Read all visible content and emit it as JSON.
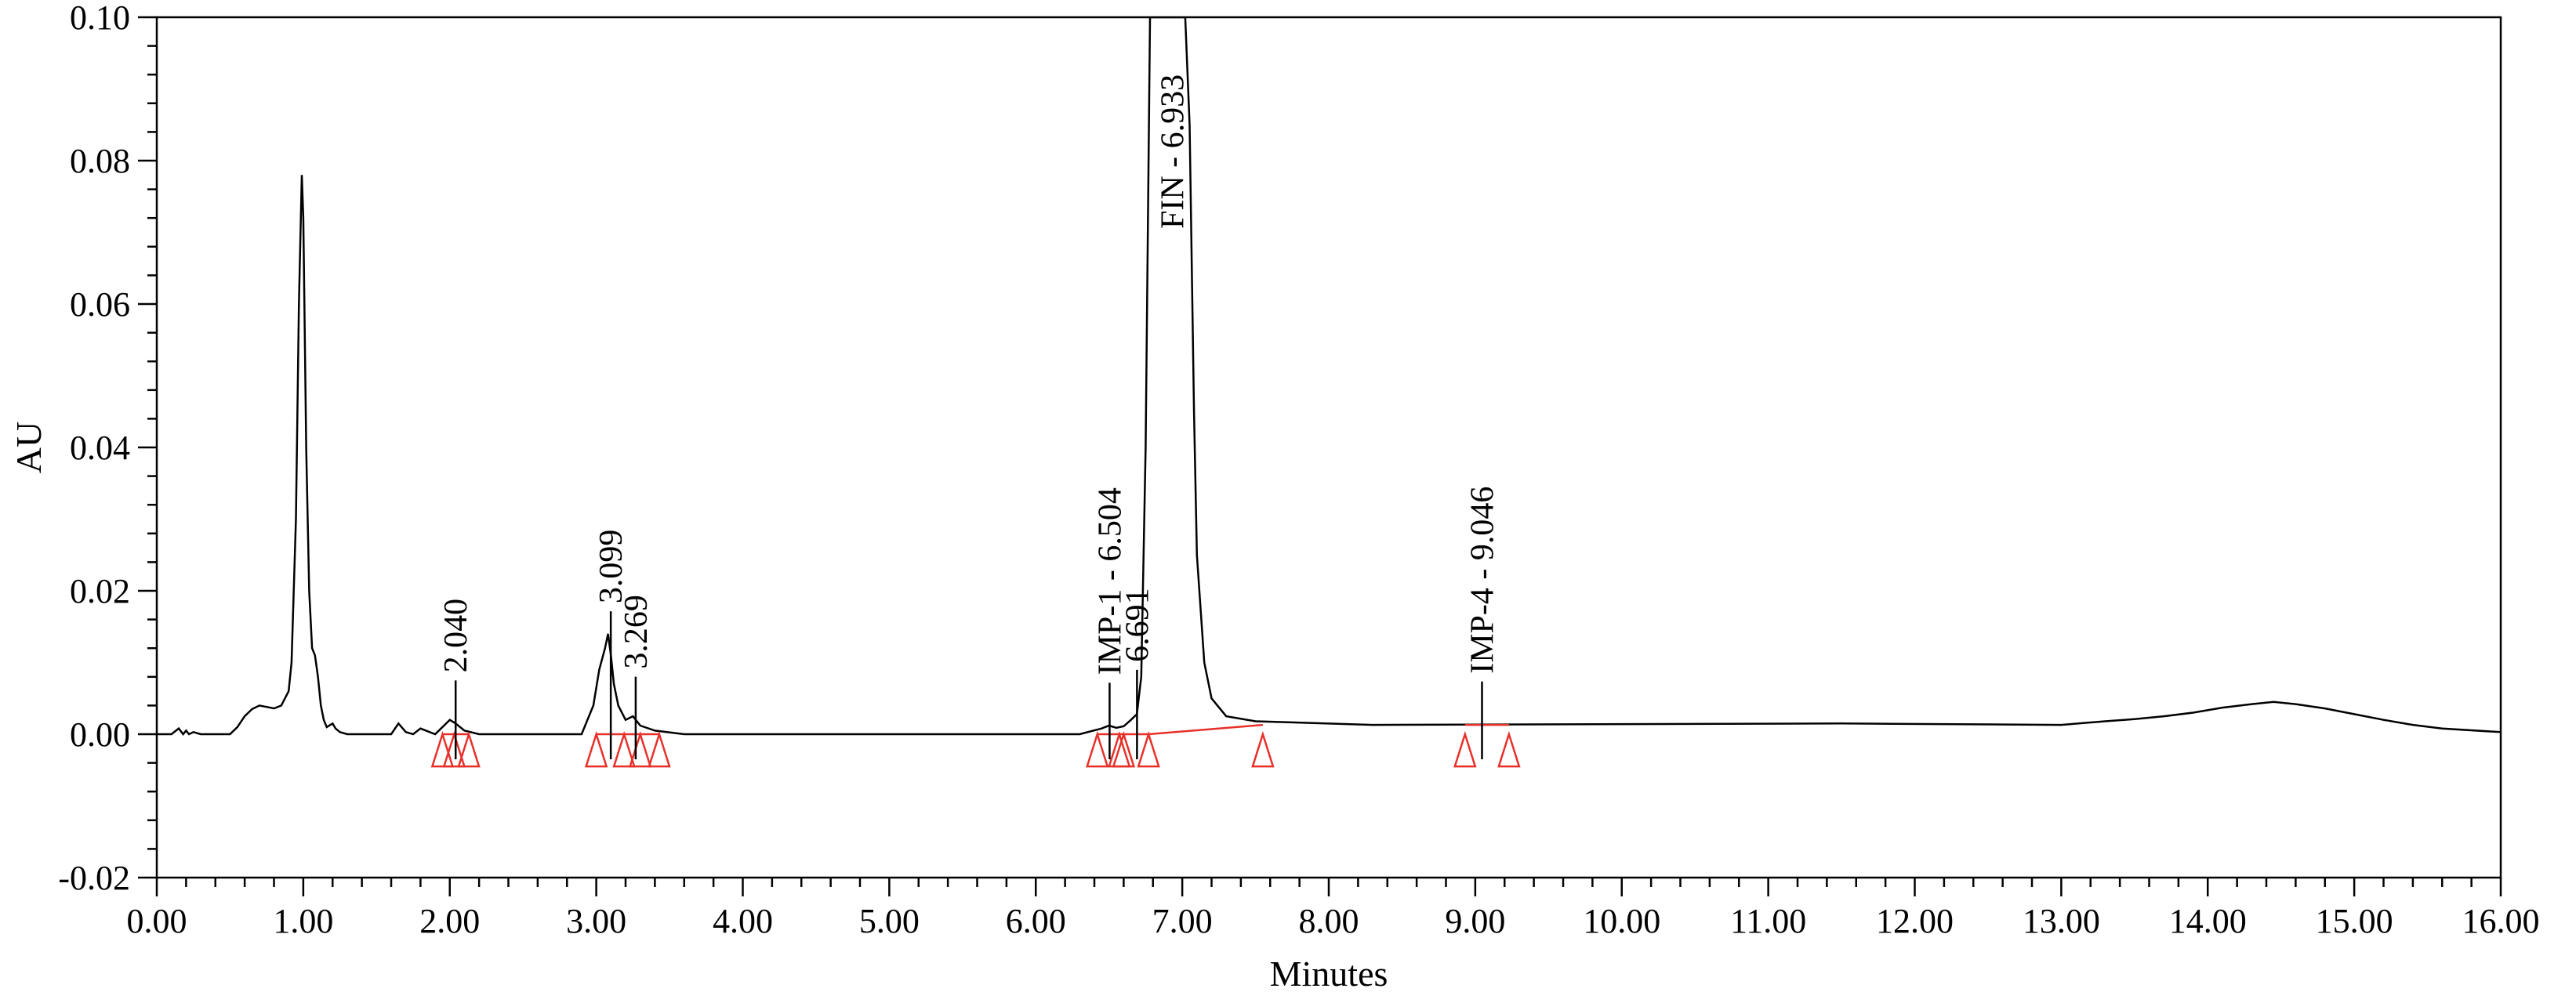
{
  "chart_data": {
    "type": "line",
    "title": "",
    "xlabel": "Minutes",
    "ylabel": "AU",
    "xlim": [
      0,
      16
    ],
    "ylim": [
      -0.02,
      0.1
    ],
    "x_ticks": [
      "0.00",
      "1.00",
      "2.00",
      "3.00",
      "4.00",
      "5.00",
      "6.00",
      "7.00",
      "8.00",
      "9.00",
      "10.00",
      "11.00",
      "12.00",
      "13.00",
      "14.00",
      "15.00",
      "16.00"
    ],
    "y_ticks": [
      "-0.02",
      "0.00",
      "0.02",
      "0.04",
      "0.06",
      "0.08",
      "0.10"
    ],
    "grid": false,
    "colors": {
      "trace": "#000000",
      "integration": "#e8302a"
    },
    "series": [
      {
        "x": [
          0.0,
          0.1,
          0.15,
          0.18,
          0.2,
          0.22,
          0.25,
          0.3,
          0.5,
          0.55,
          0.6,
          0.65,
          0.7,
          0.75,
          0.8,
          0.85,
          0.9,
          0.92,
          0.95,
          0.97,
          0.99,
          1.0,
          1.02,
          1.04,
          1.06,
          1.08,
          1.1,
          1.12,
          1.14,
          1.16,
          1.2,
          1.22,
          1.25,
          1.3,
          1.6,
          1.65,
          1.7,
          1.75,
          1.8,
          1.9,
          2.0,
          2.04,
          2.1,
          2.2,
          2.9,
          2.98,
          3.02,
          3.06,
          3.08,
          3.1,
          3.12,
          3.15,
          3.2,
          3.25,
          3.27,
          3.3,
          3.4,
          3.6,
          6.3,
          6.45,
          6.5,
          6.55,
          6.6,
          6.65,
          6.69,
          6.72,
          6.75,
          6.78,
          6.8,
          6.82,
          6.85,
          6.9,
          6.95,
          7.0,
          7.02,
          7.05,
          7.08,
          7.1,
          7.15,
          7.2,
          7.3,
          7.5,
          8.3,
          11.5,
          13.0,
          13.3,
          13.5,
          13.7,
          13.9,
          14.1,
          14.3,
          14.45,
          14.6,
          14.8,
          15.0,
          15.2,
          15.4,
          15.6,
          16.0
        ],
        "y": [
          0.0,
          0.0,
          0.0008,
          0.0,
          0.0005,
          0.0,
          0.0003,
          0.0,
          0.0,
          0.001,
          0.0025,
          0.0035,
          0.004,
          0.0038,
          0.0036,
          0.004,
          0.006,
          0.01,
          0.03,
          0.06,
          0.078,
          0.072,
          0.04,
          0.02,
          0.012,
          0.011,
          0.008,
          0.004,
          0.002,
          0.001,
          0.0015,
          0.0008,
          0.0003,
          0.0,
          0.0,
          0.0015,
          0.0003,
          0.0,
          0.0008,
          0.0,
          0.002,
          0.0015,
          0.0005,
          0.0,
          0.0,
          0.004,
          0.009,
          0.012,
          0.014,
          0.011,
          0.007,
          0.004,
          0.002,
          0.0025,
          0.002,
          0.0012,
          0.0005,
          0.0,
          0.0,
          0.0008,
          0.0012,
          0.0009,
          0.0011,
          0.002,
          0.0028,
          0.008,
          0.04,
          0.1,
          0.1,
          0.1,
          0.1,
          0.1,
          0.1,
          0.1,
          0.1,
          0.085,
          0.045,
          0.025,
          0.01,
          0.005,
          0.0025,
          0.0018,
          0.0013,
          0.0015,
          0.0013,
          0.0018,
          0.0021,
          0.0025,
          0.003,
          0.0037,
          0.0042,
          0.0045,
          0.0042,
          0.0036,
          0.0028,
          0.002,
          0.0013,
          0.0008,
          0.0003
        ]
      }
    ],
    "peak_labels": [
      {
        "text": "2.040",
        "rt": 2.04
      },
      {
        "text": "3.099",
        "rt": 3.099
      },
      {
        "text": "3.269",
        "rt": 3.269
      },
      {
        "text": "IMP-1 - 6.504",
        "rt": 6.504
      },
      {
        "text": "6.691",
        "rt": 6.691
      },
      {
        "text": "FIN - 6.933",
        "rt": 6.933
      },
      {
        "text": "IMP-4 - 9.046",
        "rt": 9.046
      }
    ],
    "integration_markers_x": [
      1.95,
      2.03,
      2.13,
      3.0,
      3.19,
      3.3,
      3.43,
      6.42,
      6.57,
      6.6,
      6.77,
      7.55,
      8.93,
      9.23
    ],
    "baseline_segments": [
      {
        "x": [
          1.95,
          2.13
        ],
        "y": [
          0.0,
          0.0
        ]
      },
      {
        "x": [
          3.0,
          3.43
        ],
        "y": [
          0.0,
          0.0
        ]
      },
      {
        "x": [
          6.42,
          6.77
        ],
        "y": [
          0.0,
          0.0
        ]
      },
      {
        "x": [
          6.77,
          7.55
        ],
        "y": [
          0.0,
          0.0013
        ]
      },
      {
        "x": [
          8.93,
          9.23
        ],
        "y": [
          0.0013,
          0.0013
        ]
      }
    ]
  }
}
